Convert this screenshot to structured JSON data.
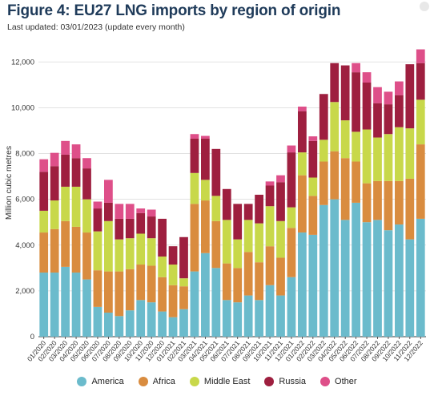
{
  "header": {
    "title": "Figure 4: EU27 LNG imports by region of origin",
    "subtitle": "Last updated: 03/01/2023 (update every month)"
  },
  "colors": {
    "America": "#6bbbcc",
    "Africa": "#d98c3f",
    "Middle East": "#c8d84a",
    "Russia": "#9e1f3f",
    "Other": "#de4f89",
    "grid": "#d9d9d9",
    "axis": "#333333"
  },
  "chart_data": {
    "type": "bar",
    "stacked": true,
    "ylabel": "Million cubic metres",
    "xlabel": "",
    "ylim": [
      0,
      12500
    ],
    "yticks": [
      0,
      2000,
      4000,
      6000,
      8000,
      10000,
      12000
    ],
    "ytick_labels": [
      "0",
      "2,000",
      "4,000",
      "6,000",
      "8,000",
      "10,000",
      "12,000"
    ],
    "grid": "horizontal",
    "legend_position": "bottom",
    "categories": [
      "01/2020",
      "02/2020",
      "03/2020",
      "04/2020",
      "05/2020",
      "06/2020",
      "07/2020",
      "08/2020",
      "09/2020",
      "10/2020",
      "11/2020",
      "12/2020",
      "01/2021",
      "02/2021",
      "03/2021",
      "04/2021",
      "05/2021",
      "06/2021",
      "07/2021",
      "08/2021",
      "09/2021",
      "10/2021",
      "11/2021",
      "12/2021",
      "01/2022",
      "02/2022",
      "03/2022",
      "04/2022",
      "05/2022",
      "06/2022",
      "07/2022",
      "08/2022",
      "09/2022",
      "10/2022",
      "11/2022",
      "12/2022"
    ],
    "series": [
      {
        "name": "America",
        "values": [
          2800,
          2800,
          3050,
          2800,
          2500,
          1300,
          1050,
          900,
          1150,
          1600,
          1500,
          1100,
          850,
          1200,
          2850,
          3650,
          3000,
          1600,
          1500,
          1800,
          1600,
          2250,
          1800,
          2600,
          4550,
          4450,
          5750,
          6000,
          5100,
          5850,
          5000,
          5100,
          4650,
          4900,
          4250,
          5150
        ]
      },
      {
        "name": "Africa",
        "values": [
          1750,
          1900,
          2000,
          2000,
          2050,
          1600,
          1800,
          1950,
          1800,
          1550,
          1600,
          1500,
          1400,
          1000,
          2950,
          2300,
          2050,
          1600,
          1500,
          1900,
          1650,
          1700,
          1650,
          2150,
          2500,
          1700,
          1900,
          2100,
          2700,
          1800,
          1700,
          1700,
          2150,
          1900,
          2650,
          3250
        ]
      },
      {
        "name": "Middle East",
        "values": [
          950,
          1250,
          1500,
          1750,
          1450,
          1700,
          2200,
          1400,
          1350,
          1350,
          1200,
          900,
          900,
          350,
          1350,
          900,
          1100,
          1900,
          1250,
          1400,
          1700,
          1750,
          1600,
          900,
          1000,
          800,
          950,
          2150,
          1650,
          1300,
          2350,
          1900,
          2050,
          2350,
          2200,
          1950
        ]
      },
      {
        "name": "Russia",
        "values": [
          1700,
          1500,
          1400,
          1250,
          1350,
          1000,
          800,
          900,
          850,
          900,
          950,
          1650,
          800,
          1800,
          1500,
          1800,
          2050,
          1350,
          1550,
          700,
          1250,
          900,
          1700,
          2400,
          1800,
          1600,
          2000,
          1700,
          2400,
          2600,
          2050,
          1500,
          1300,
          1400,
          2800,
          1600
        ]
      },
      {
        "name": "Other",
        "values": [
          550,
          580,
          600,
          600,
          450,
          300,
          1000,
          650,
          650,
          200,
          300,
          0,
          0,
          0,
          200,
          120,
          0,
          0,
          0,
          0,
          0,
          180,
          300,
          300,
          200,
          200,
          0,
          0,
          0,
          400,
          450,
          700,
          550,
          600,
          0,
          600
        ]
      }
    ]
  },
  "legend": [
    {
      "label": "America",
      "key": "America"
    },
    {
      "label": "Africa",
      "key": "Africa"
    },
    {
      "label": "Middle East",
      "key": "Middle East"
    },
    {
      "label": "Russia",
      "key": "Russia"
    },
    {
      "label": "Other",
      "key": "Other"
    }
  ]
}
